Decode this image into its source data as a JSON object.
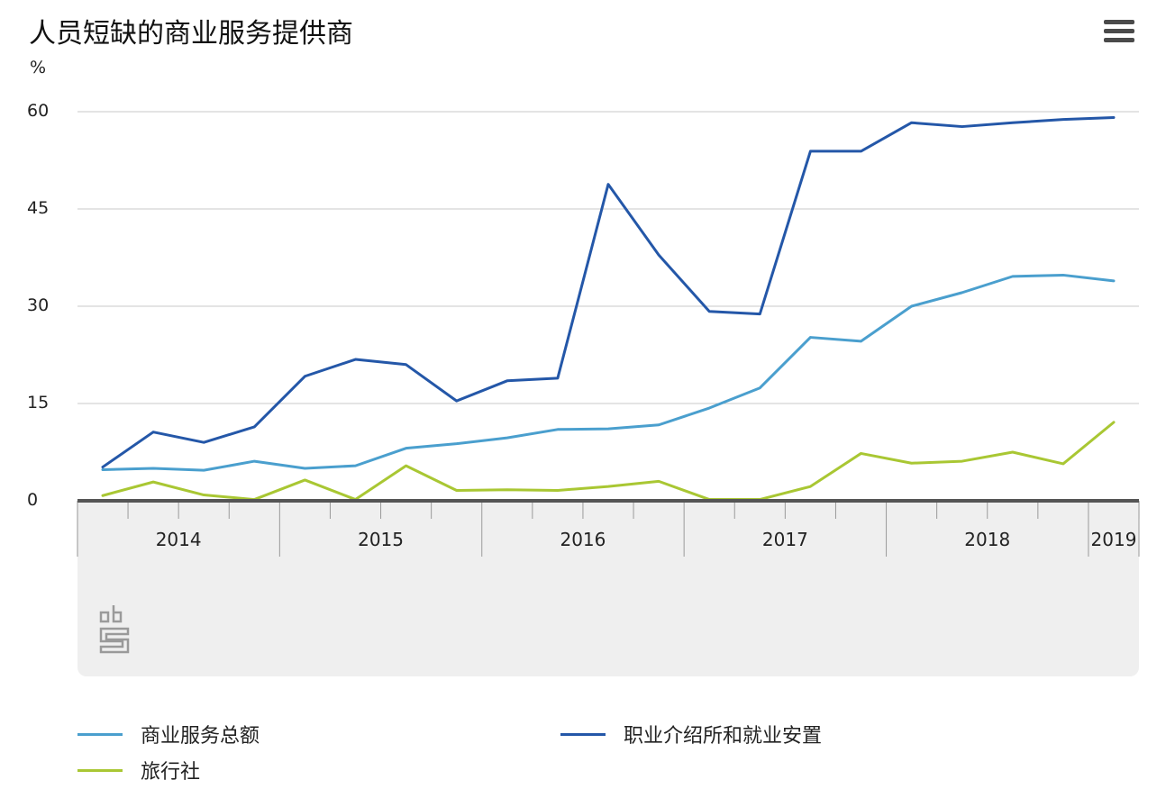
{
  "title": "人员短缺的商业服务提供商",
  "unit": "%",
  "colors": {
    "total": "#4a9fce",
    "agencies": "#2457a8",
    "travel": "#a9c733",
    "grid": "#c8c8c8",
    "baseline": "#555555"
  },
  "chart_data": {
    "type": "line",
    "title": "人员短缺的商业服务提供商",
    "ylabel": "%",
    "ylim": [
      0,
      60
    ],
    "yticks": [
      0,
      15,
      30,
      45,
      60
    ],
    "x_groups": [
      "2014",
      "2015",
      "2016",
      "2017",
      "2018",
      "2019"
    ],
    "x": [
      "2014Q1",
      "2014Q2",
      "2014Q3",
      "2014Q4",
      "2015Q1",
      "2015Q2",
      "2015Q3",
      "2015Q4",
      "2016Q1",
      "2016Q2",
      "2016Q3",
      "2016Q4",
      "2017Q1",
      "2017Q2",
      "2017Q3",
      "2017Q4",
      "2018Q1",
      "2018Q2",
      "2018Q3",
      "2018Q4",
      "2019Q1"
    ],
    "series": [
      {
        "name": "商业服务总额",
        "color": "#4a9fce",
        "values": [
          4.8,
          5.0,
          4.7,
          6.1,
          5.0,
          5.4,
          8.1,
          8.8,
          9.7,
          11.0,
          11.1,
          11.7,
          14.3,
          17.4,
          25.2,
          24.6,
          30.0,
          32.1,
          34.6,
          34.8,
          33.9
        ]
      },
      {
        "name": "职业介绍所和就业安置",
        "color": "#2457a8",
        "values": [
          5.2,
          10.6,
          9.0,
          11.4,
          19.2,
          21.8,
          21.0,
          15.4,
          18.5,
          18.9,
          48.8,
          37.9,
          29.2,
          28.8,
          53.9,
          53.9,
          58.3,
          57.7,
          58.3,
          58.8,
          59.1
        ]
      },
      {
        "name": "旅行社",
        "color": "#a9c733",
        "values": [
          0.8,
          2.9,
          0.9,
          0.2,
          3.2,
          0.2,
          5.4,
          1.6,
          1.7,
          1.6,
          2.2,
          3.0,
          0.2,
          0.2,
          2.2,
          7.3,
          5.8,
          6.1,
          7.5,
          5.7,
          12.1
        ]
      }
    ],
    "grid": true,
    "legend_position": "bottom"
  }
}
